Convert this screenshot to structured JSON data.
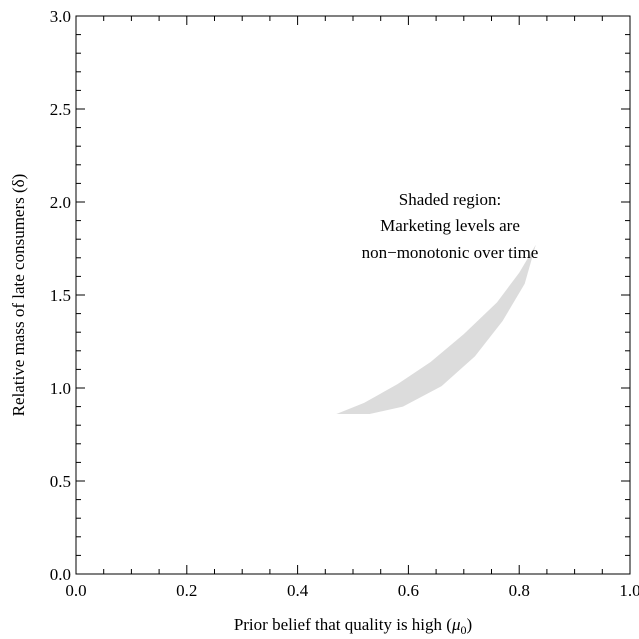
{
  "chart_data": {
    "type": "area",
    "title": "",
    "xlabel": "Prior belief that quality is high (",
    "xlabel_symbol": "μ",
    "xlabel_subscript": "0",
    "xlabel_close": ")",
    "ylabel": "Relative mass of late consumers (δ)",
    "xlim": [
      0.0,
      1.0
    ],
    "ylim": [
      0.0,
      3.0
    ],
    "x_ticks": [
      "0.0",
      "0.2",
      "0.4",
      "0.6",
      "0.8",
      "1.0"
    ],
    "y_ticks": [
      "0.0",
      "0.5",
      "1.0",
      "1.5",
      "2.0",
      "2.5",
      "3.0"
    ],
    "grid": false,
    "region": {
      "fill": "#dcdcdc",
      "upper": [
        {
          "x": 0.47,
          "y": 0.86
        },
        {
          "x": 0.52,
          "y": 0.92
        },
        {
          "x": 0.58,
          "y": 1.02
        },
        {
          "x": 0.64,
          "y": 1.14
        },
        {
          "x": 0.7,
          "y": 1.29
        },
        {
          "x": 0.76,
          "y": 1.46
        },
        {
          "x": 0.8,
          "y": 1.62
        },
        {
          "x": 0.83,
          "y": 1.77
        }
      ],
      "lower": [
        {
          "x": 0.83,
          "y": 1.77
        },
        {
          "x": 0.81,
          "y": 1.56
        },
        {
          "x": 0.77,
          "y": 1.36
        },
        {
          "x": 0.72,
          "y": 1.17
        },
        {
          "x": 0.66,
          "y": 1.01
        },
        {
          "x": 0.59,
          "y": 0.9
        },
        {
          "x": 0.53,
          "y": 0.86
        },
        {
          "x": 0.47,
          "y": 0.86
        }
      ]
    },
    "annotation": {
      "lines": [
        "Shaded region:",
        "Marketing levels are",
        "non−monotonic over time"
      ]
    }
  }
}
